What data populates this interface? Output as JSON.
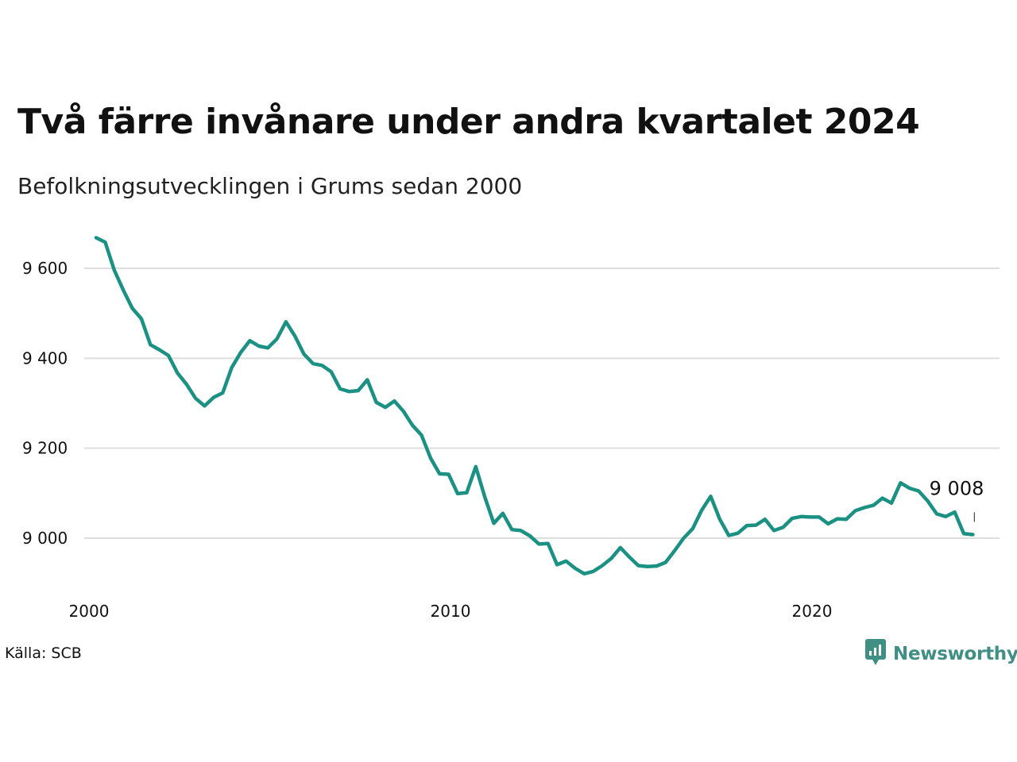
{
  "title": "Två färre invånare under andra kvartalet 2024",
  "subtitle": "Befolkningsutvecklingen i Grums sedan 2000",
  "source": "Källa: SCB",
  "brand": {
    "name": "Newsworthy",
    "icon": "newsworthy-logo-icon"
  },
  "colors": {
    "line": "#1a9183",
    "grid": "#dedede",
    "brand": "#3f8f84"
  },
  "chart_data": {
    "type": "line",
    "title": "Två färre invånare under andra kvartalet 2024",
    "subtitle": "Befolkningsutvecklingen i Grums sedan 2000",
    "xlabel": "",
    "ylabel": "",
    "x_start": 2000,
    "x_step": 0.25,
    "xlim": [
      2000,
      2025.3
    ],
    "ylim": [
      8870,
      9700
    ],
    "yticks": [
      9000,
      9200,
      9400,
      9600
    ],
    "ytick_labels": [
      "9 000",
      "9 200",
      "9 400",
      "9 600"
    ],
    "xticks": [
      2000,
      2010,
      2020
    ],
    "xtick_labels": [
      "2000",
      "2010",
      "2020"
    ],
    "grid": true,
    "end_label": "9 008",
    "series": [
      {
        "values": [
          9668,
          9658,
          9596,
          9552,
          9511,
          9488,
          9430,
          9419,
          9406,
          9367,
          9342,
          9311,
          9294,
          9313,
          9323,
          9379,
          9413,
          9439,
          9427,
          9423,
          9443,
          9481,
          9449,
          9409,
          9388,
          9384,
          9370,
          9332,
          9326,
          9328,
          9352,
          9302,
          9291,
          9305,
          9282,
          9251,
          9229,
          9178,
          9143,
          9142,
          9099,
          9101,
          9159,
          9092,
          9033,
          9055,
          9019,
          9017,
          9005,
          8987,
          8988,
          8941,
          8949,
          8933,
          8921,
          8926,
          8939,
          8955,
          8979,
          8958,
          8939,
          8937,
          8938,
          8946,
          8972,
          9000,
          9021,
          9062,
          9093,
          9042,
          9006,
          9011,
          9028,
          9029,
          9042,
          9017,
          9024,
          9044,
          9048,
          9047,
          9047,
          9032,
          9043,
          9042,
          9061,
          9068,
          9073,
          9089,
          9078,
          9123,
          9111,
          9105,
          9083,
          9054,
          9048,
          9058,
          9010,
          9008
        ]
      }
    ]
  }
}
